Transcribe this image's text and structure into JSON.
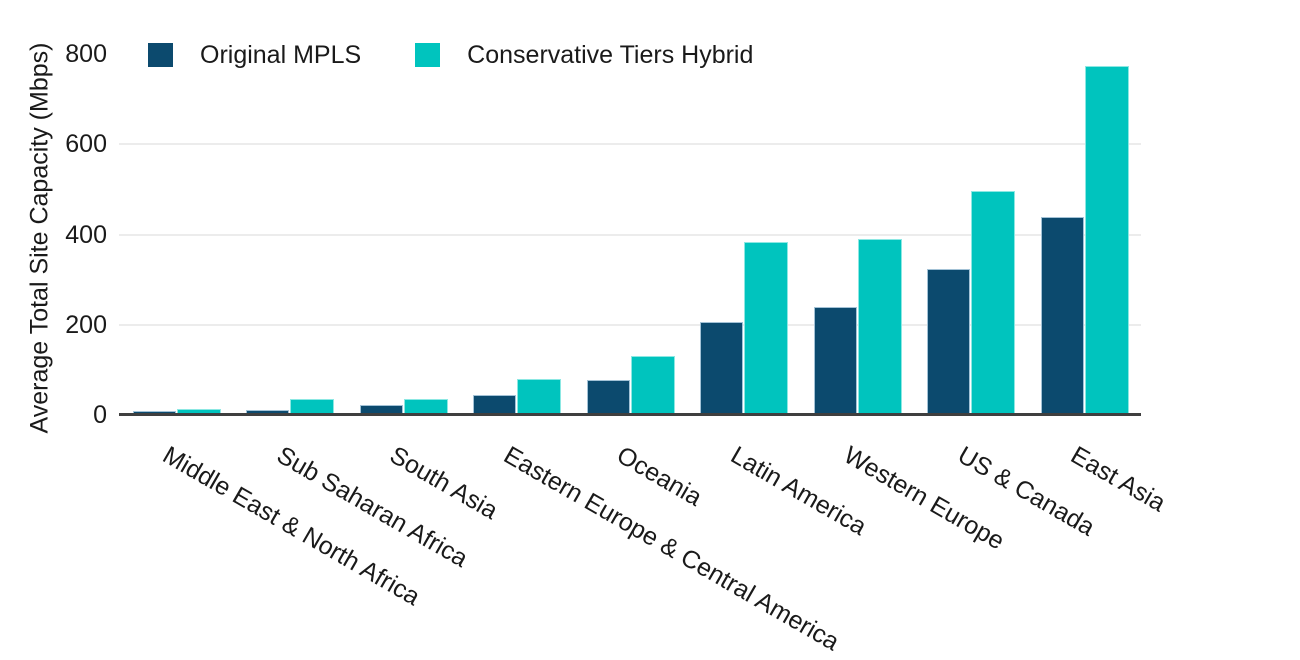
{
  "chart_data": {
    "type": "bar",
    "title": "",
    "xlabel": "",
    "ylabel": "Average Total Site Capacity (Mbps)",
    "ylim": [
      0,
      800
    ],
    "yticks": [
      0,
      200,
      400,
      600,
      800
    ],
    "gridlines": [
      200,
      400,
      600
    ],
    "grid": true,
    "legend_position": "top-left",
    "categories": [
      "Middle East & North Africa",
      "Sub Saharan Africa",
      "South Asia",
      "Eastern Europe & Central America",
      "Oceania",
      "Latin America",
      "Western Europe",
      "US & Canada",
      "East Asia"
    ],
    "series": [
      {
        "name": "Original MPLS",
        "color": "#0c4a6e",
        "edge_color": "#a3c2d6",
        "values": [
          8,
          12,
          22,
          44,
          77,
          206,
          240,
          323,
          438
        ]
      },
      {
        "name": "Conservative Tiers Hybrid",
        "color": "#00c4be",
        "edge_color": "#8ce8e3",
        "values": [
          14,
          36,
          35,
          79,
          130,
          384,
          389,
          496,
          774
        ]
      }
    ]
  },
  "colors": {
    "axis_line": "#3f3f3f",
    "gridline": "#ececec",
    "text": "#1a1a1a",
    "background": "#ffffff"
  }
}
